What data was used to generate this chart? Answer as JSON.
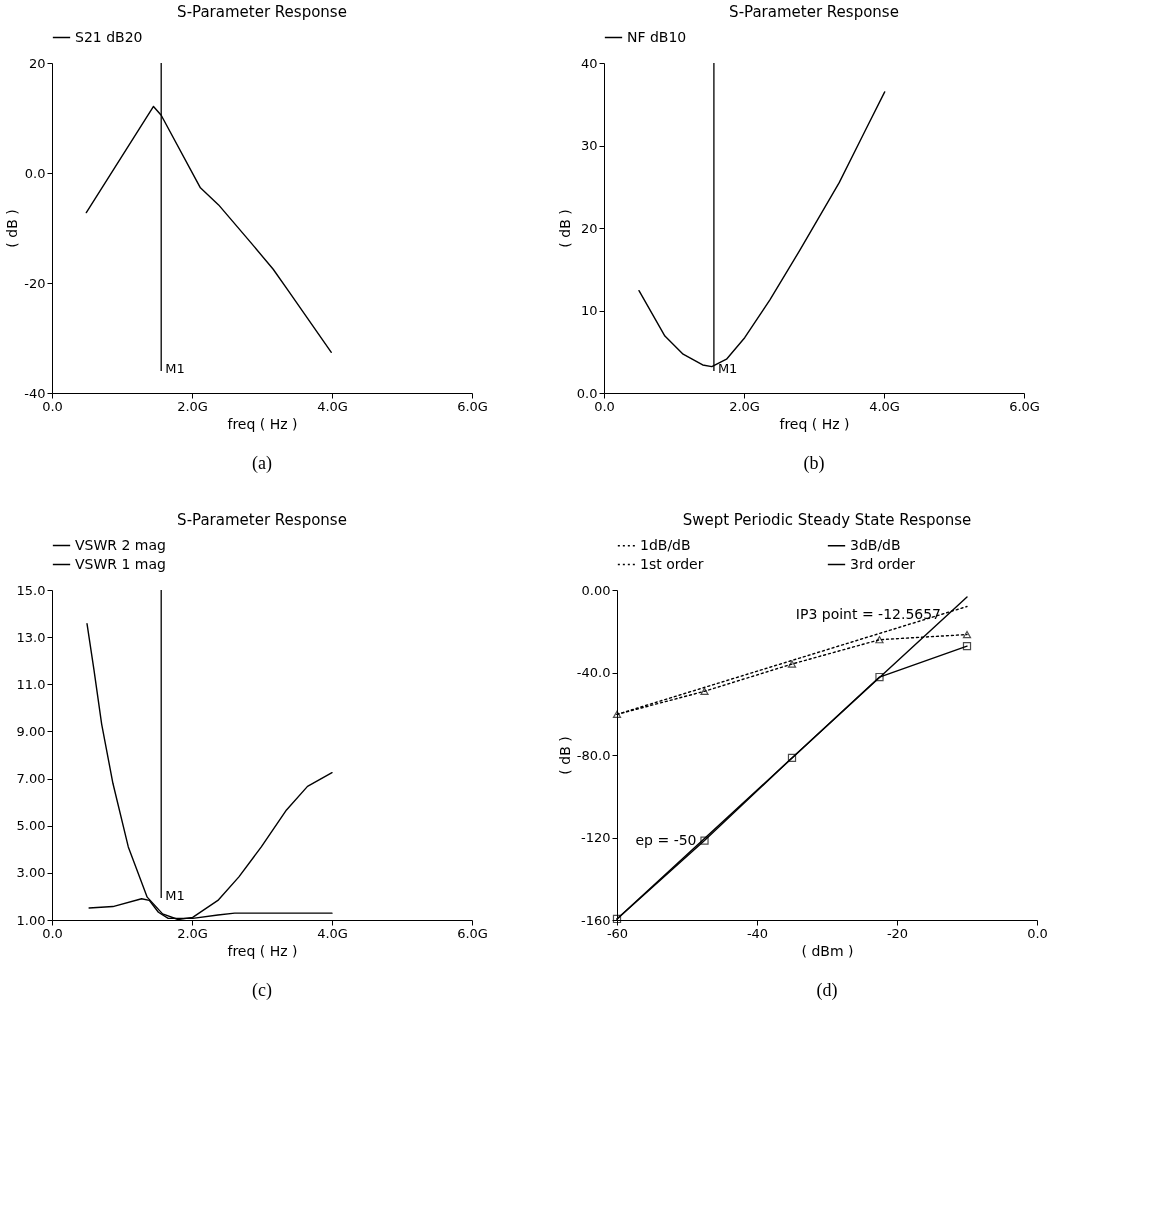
{
  "chart_data": [
    {
      "type": "line",
      "title": "S-Parameter Response",
      "xlabel": "freq ( Hz )",
      "ylabel": "( dB )",
      "legend": "top",
      "xlim": [
        0,
        6
      ],
      "xticks": [
        {
          "value": 0,
          "label": "0.0"
        },
        {
          "value": 2,
          "label": "2.0G"
        },
        {
          "value": 4,
          "label": "4.0G"
        },
        {
          "value": 6,
          "label": "6.0G"
        }
      ],
      "ylim": [
        -40,
        20
      ],
      "yticks": [
        -40,
        -20,
        {
          "value": 0,
          "label": "0.0"
        },
        20
      ],
      "x": [
        0.49,
        1.45,
        1.56,
        2.12,
        2.38,
        2.85,
        3.16,
        3.37,
        3.99
      ],
      "series": [
        {
          "name": "S21 dB20",
          "color": "#000000",
          "values": [
            -7.2,
            12.1,
            10.5,
            -2.7,
            -5.8,
            -12.8,
            -17.5,
            -21.3,
            -32.6
          ]
        }
      ],
      "ref_lines": [
        {
          "axis": "x",
          "value": 1.56,
          "label": "M1"
        }
      ],
      "annotations": [
        "(a)"
      ]
    },
    {
      "type": "line",
      "title": "S-Parameter Response",
      "xlabel": "freq ( Hz )",
      "ylabel": "( dB )",
      "legend": "top",
      "xlim": [
        0,
        6
      ],
      "xticks": [
        {
          "value": 0,
          "label": "0.0"
        },
        {
          "value": 2,
          "label": "2.0G"
        },
        {
          "value": 4,
          "label": "4.0G"
        },
        {
          "value": 6,
          "label": "6.0G"
        }
      ],
      "ylim": [
        0,
        40
      ],
      "yticks": [
        {
          "value": 0,
          "label": "0.0"
        },
        10,
        20,
        30,
        40
      ],
      "x": [
        0.5,
        0.87,
        1.13,
        1.41,
        1.54,
        1.75,
        2.01,
        2.37,
        2.79,
        3.36,
        3.72,
        4.01
      ],
      "series": [
        {
          "name": "NF dB10",
          "color": "#000000",
          "values": [
            12.4,
            6.9,
            4.7,
            3.4,
            3.2,
            4.1,
            6.7,
            11.3,
            17.2,
            25.5,
            31.6,
            36.5
          ]
        }
      ],
      "ref_lines": [
        {
          "axis": "x",
          "value": 1.57,
          "label": "M1"
        }
      ],
      "annotations": [
        "(b)"
      ]
    },
    {
      "type": "line",
      "title": "S-Parameter Response",
      "xlabel": "freq ( Hz )",
      "legend": "top",
      "xlim": [
        0,
        6
      ],
      "xticks": [
        {
          "value": 0,
          "label": "0.0"
        },
        {
          "value": 2,
          "label": "2.0G"
        },
        {
          "value": 4,
          "label": "4.0G"
        },
        {
          "value": 6,
          "label": "6.0G"
        }
      ],
      "ylim": [
        1,
        15
      ],
      "yticks": [
        {
          "value": 1,
          "label": "1.00"
        },
        {
          "value": 3,
          "label": "3.00"
        },
        {
          "value": 5,
          "label": "5.00"
        },
        {
          "value": 7,
          "label": "7.00"
        },
        {
          "value": 9,
          "label": "9.00"
        },
        {
          "value": 11,
          "label": "11.0"
        },
        {
          "value": 13,
          "label": "13.0"
        },
        {
          "value": 15,
          "label": "15.0"
        }
      ],
      "series": [
        {
          "name": "VSWR 2 mag",
          "color": "#000000",
          "x": [
            0.53,
            0.87,
            1.28,
            1.39,
            1.52,
            1.66,
            2.01,
            2.37,
            2.61,
            3.37,
            4.0
          ],
          "values": [
            1.51,
            1.57,
            1.9,
            1.83,
            1.33,
            1.07,
            1.07,
            1.21,
            1.29,
            1.29,
            1.29
          ]
        },
        {
          "name": "VSWR 1 mag",
          "color": "#000000",
          "x": [
            0.5,
            0.6,
            0.71,
            0.87,
            1.09,
            1.36,
            1.58,
            1.8,
            2.01,
            2.37,
            2.67,
            2.99,
            3.35,
            3.65,
            4.0
          ],
          "values": [
            13.57,
            11.6,
            9.3,
            6.8,
            4.1,
            1.97,
            1.26,
            1.02,
            1.11,
            1.83,
            2.83,
            4.1,
            5.67,
            6.67,
            7.25
          ]
        }
      ],
      "ref_lines": [
        {
          "axis": "x",
          "value": 1.56,
          "label": "M1"
        }
      ],
      "annotations": [
        "(c)"
      ]
    },
    {
      "type": "line",
      "title": "Swept Periodic Steady State Response",
      "xlabel": "( dBm )",
      "ylabel": "( dB )",
      "legend": "top",
      "xlim": [
        -60,
        0
      ],
      "xticks": [
        -60,
        -40,
        -20,
        {
          "value": 0,
          "label": "0.0"
        }
      ],
      "ylim": [
        -160,
        0
      ],
      "yticks": [
        -160,
        -120,
        {
          "value": -80,
          "label": "-80.0"
        },
        {
          "value": -40,
          "label": "-40.0"
        },
        {
          "value": 0,
          "label": "0.00"
        }
      ],
      "series": [
        {
          "name": "1dB/dB",
          "color": "#000000",
          "line_style": "dotted",
          "x": [
            -60,
            -10
          ],
          "values": [
            -60.3,
            -8
          ]
        },
        {
          "name": "1st order",
          "color": "#000000",
          "line_style": "dotted",
          "marker": "triangle",
          "x": [
            -60,
            -47.5,
            -35,
            -22.5,
            -10
          ],
          "values": [
            -60.3,
            -49.1,
            -35.9,
            -24.1,
            -21.6
          ]
        },
        {
          "name": "3dB/dB",
          "color": "#000000",
          "line_style": "solid",
          "x": [
            -60,
            -10
          ],
          "values": [
            -159.5,
            -3.4
          ]
        },
        {
          "name": "3rd order",
          "color": "#000000",
          "line_style": "solid",
          "marker": "square",
          "x": [
            -60,
            -47.5,
            -35,
            -22.5,
            -10
          ],
          "values": [
            -159.5,
            -121.5,
            -81.4,
            -42.2,
            -27.2
          ]
        }
      ],
      "annotations": [
        {
          "text": "IP3 point = -12.5657",
          "x": -12.5657,
          "y": -12
        },
        {
          "text": "ep = -50",
          "x": -47.5,
          "y": -121.5
        },
        "(d)"
      ]
    }
  ]
}
